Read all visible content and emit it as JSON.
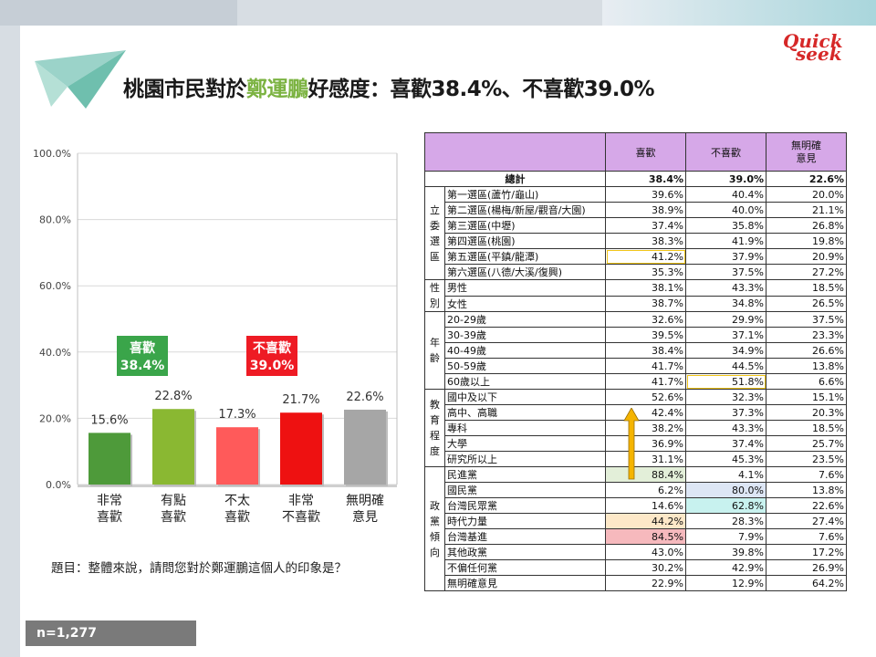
{
  "title": {
    "prefix": "桃園市民對於",
    "name": "鄭運鵬",
    "suffix": "好感度：喜歡38.4%、不喜歡39.0%"
  },
  "logo": {
    "line1": "Quick",
    "line2": "seek"
  },
  "question": "題目：整體來說，請問您對於鄭運鵬這個人的印象是？",
  "sample": "n=1,277",
  "colors": {
    "strong_like": "#4e9a3a",
    "like": "#8ab832",
    "dislike": "#ff5a5a",
    "strong_dislike": "#ee1111",
    "no_opinion": "#a6a6a6",
    "accent_green": "#7cb342"
  },
  "chart_data": {
    "type": "bar",
    "categories": [
      "非常\n喜歡",
      "有點\n喜歡",
      "不太\n喜歡",
      "非常\n不喜歡",
      "無明確\n意見"
    ],
    "values": [
      15.6,
      22.8,
      17.3,
      21.7,
      22.6
    ],
    "value_labels": [
      "15.6%",
      "22.8%",
      "17.3%",
      "21.7%",
      "22.6%"
    ],
    "y_ticks": [
      "0.0%",
      "20.0%",
      "40.0%",
      "60.0%",
      "80.0%",
      "100.0%"
    ],
    "ylim": [
      0,
      100
    ],
    "grid": true,
    "callouts": [
      {
        "label": "喜歡",
        "value": "38.4%"
      },
      {
        "label": "不喜歡",
        "value": "39.0%"
      }
    ]
  },
  "table": {
    "headers": [
      "喜歡",
      "不喜歡",
      "無明確\n意見"
    ],
    "total": {
      "label": "總計",
      "values": [
        "38.4%",
        "39.0%",
        "22.6%"
      ]
    },
    "groups": [
      {
        "name": "立\n委\n選\n區",
        "rows": [
          {
            "label": "第一選區(蘆竹/龜山)",
            "values": [
              "39.6%",
              "40.4%",
              "20.0%"
            ]
          },
          {
            "label": "第二選區(楊梅/新屋/觀音/大園)",
            "values": [
              "38.9%",
              "40.0%",
              "21.1%"
            ]
          },
          {
            "label": "第三選區(中壢)",
            "values": [
              "37.4%",
              "35.8%",
              "26.8%"
            ]
          },
          {
            "label": "第四選區(桃園)",
            "values": [
              "38.3%",
              "41.9%",
              "19.8%"
            ]
          },
          {
            "label": "第五選區(平鎮/龍潭)",
            "values": [
              "41.2%",
              "37.9%",
              "20.9%"
            ],
            "hl": [
              0
            ]
          },
          {
            "label": "第六選區(八德/大溪/復興)",
            "values": [
              "35.3%",
              "37.5%",
              "27.2%"
            ]
          }
        ]
      },
      {
        "name": "性\n別",
        "rows": [
          {
            "label": "男性",
            "values": [
              "38.1%",
              "43.3%",
              "18.5%"
            ]
          },
          {
            "label": "女性",
            "values": [
              "38.7%",
              "34.8%",
              "26.5%"
            ]
          }
        ]
      },
      {
        "name": "年\n齡",
        "rows": [
          {
            "label": "20-29歲",
            "values": [
              "32.6%",
              "29.9%",
              "37.5%"
            ]
          },
          {
            "label": "30-39歲",
            "values": [
              "39.5%",
              "37.1%",
              "23.3%"
            ]
          },
          {
            "label": "40-49歲",
            "values": [
              "38.4%",
              "34.9%",
              "26.6%"
            ]
          },
          {
            "label": "50-59歲",
            "values": [
              "41.7%",
              "44.5%",
              "13.8%"
            ]
          },
          {
            "label": "60歲以上",
            "values": [
              "41.7%",
              "51.8%",
              "6.6%"
            ],
            "hl": [
              1
            ]
          }
        ]
      },
      {
        "name": "教\n育\n程\n度",
        "rows": [
          {
            "label": "國中及以下",
            "values": [
              "52.6%",
              "32.3%",
              "15.1%"
            ]
          },
          {
            "label": "高中、高職",
            "values": [
              "42.4%",
              "37.3%",
              "20.3%"
            ]
          },
          {
            "label": "專科",
            "values": [
              "38.2%",
              "43.3%",
              "18.5%"
            ]
          },
          {
            "label": "大學",
            "values": [
              "36.9%",
              "37.4%",
              "25.7%"
            ]
          },
          {
            "label": "研究所以上",
            "values": [
              "31.1%",
              "45.3%",
              "23.5%"
            ]
          }
        ]
      },
      {
        "name": "政\n黨\n傾\n向",
        "rows": [
          {
            "label": "民進黨",
            "values": [
              "88.4%",
              "4.1%",
              "7.6%"
            ],
            "fill": {
              "0": "c-green"
            }
          },
          {
            "label": "國民黨",
            "values": [
              "6.2%",
              "80.0%",
              "13.8%"
            ],
            "fill": {
              "1": "c-blue"
            }
          },
          {
            "label": "台灣民眾黨",
            "values": [
              "14.6%",
              "62.8%",
              "22.6%"
            ],
            "fill": {
              "1": "c-cyan"
            }
          },
          {
            "label": "時代力量",
            "values": [
              "44.2%",
              "28.3%",
              "27.4%"
            ],
            "fill": {
              "0": "c-yellow"
            }
          },
          {
            "label": "台灣基進",
            "values": [
              "84.5%",
              "7.9%",
              "7.6%"
            ],
            "fill": {
              "0": "c-red"
            }
          },
          {
            "label": "其他政黨",
            "values": [
              "43.0%",
              "39.8%",
              "17.2%"
            ]
          },
          {
            "label": "不偏任何黨",
            "values": [
              "30.2%",
              "42.9%",
              "26.9%"
            ]
          },
          {
            "label": "無明確意見",
            "values": [
              "22.9%",
              "12.9%",
              "64.2%"
            ]
          }
        ]
      }
    ]
  }
}
